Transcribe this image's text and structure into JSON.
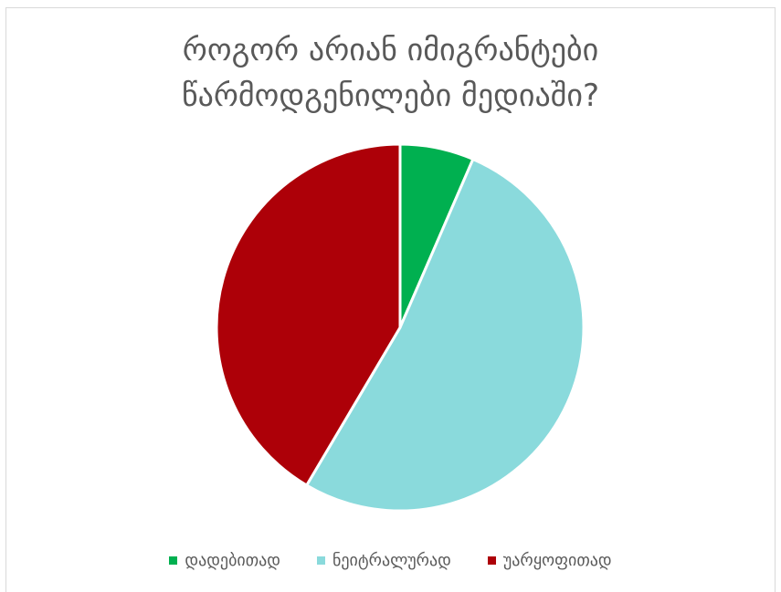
{
  "chart_data": {
    "type": "pie",
    "title_lines": [
      "როგორ არიან იმიგრანტები",
      "წარმოდგენილები მედიაში?"
    ],
    "categories": [
      "დადებითად",
      "ნეიტრალურად",
      "უარყოფითად"
    ],
    "values": [
      6.5,
      52,
      41.5
    ],
    "colors": [
      "#00b050",
      "#8adadc",
      "#ad0008"
    ],
    "legend_position": "bottom"
  }
}
